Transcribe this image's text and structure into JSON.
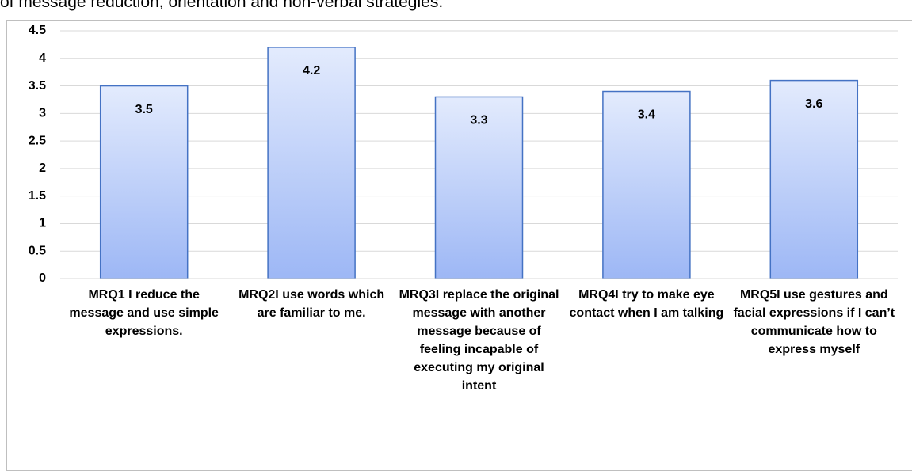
{
  "chart_data": {
    "type": "bar",
    "caption": "of message reduction, orientation and non-verbal strategies.",
    "categories": [
      "MRQ1 I reduce the message and use simple expressions.",
      "MRQ2I use words which are familiar to me.",
      "MRQ3I replace the original message with another message because of feeling incapable of executing my original intent",
      "MRQ4I try to make eye contact when I am talking",
      "MRQ5I use gestures and facial expressions if I can’t communicate how to express myself"
    ],
    "values": [
      3.5,
      4.2,
      3.3,
      3.4,
      3.6
    ],
    "color": "#4472c4",
    "ylim": [
      0,
      4.5
    ],
    "yticks": [
      0,
      0.5,
      1,
      1.5,
      2,
      2.5,
      3,
      3.5,
      4,
      4.5
    ],
    "grid": true
  }
}
